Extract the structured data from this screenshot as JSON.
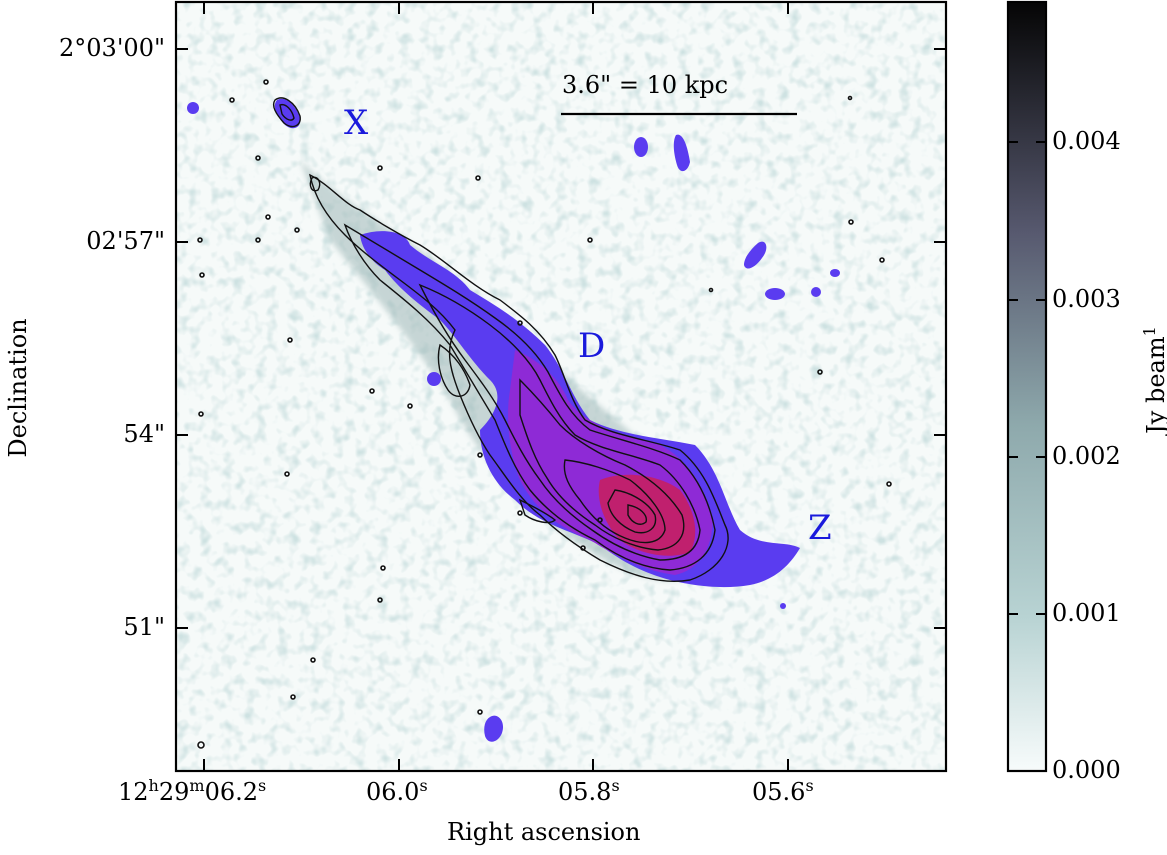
{
  "figure": {
    "x_axis_label": "Right ascension",
    "y_axis_label": "Declination",
    "colorbar_label": "Jy beam",
    "colorbar_label_sup": "1",
    "scale_bar_label": "3.6\" = 10 kpc",
    "y_ticks": [
      "2°03'00\"",
      "02'57\"",
      "54\"",
      "51\""
    ],
    "x_ticks": [
      {
        "main": "12",
        "h": "h",
        "m_val": "29",
        "m": "m",
        "s_val": "06.2",
        "s": "s"
      },
      {
        "main": "06.0",
        "s": "s"
      },
      {
        "main": "05.8",
        "s": "s"
      },
      {
        "main": "05.6",
        "s": "s"
      }
    ],
    "colorbar_ticks": [
      "0.004",
      "0.003",
      "0.002",
      "0.001",
      "0.000"
    ],
    "features": [
      {
        "name": "X",
        "color": "#1a1adc"
      },
      {
        "name": "D",
        "color": "#1a1adc"
      },
      {
        "name": "Z",
        "color": "#1a1adc"
      }
    ],
    "colormap": {
      "low": "#f7fbfb",
      "mid": "#a9c8c8",
      "high": "#000000"
    },
    "overlay_colors": {
      "outer": "#5a3cf0",
      "mid": "#8e2ad6",
      "core": "#c0206e"
    }
  }
}
